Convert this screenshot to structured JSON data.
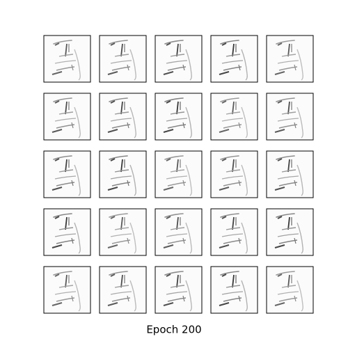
{
  "caption": "Epoch 200"
}
